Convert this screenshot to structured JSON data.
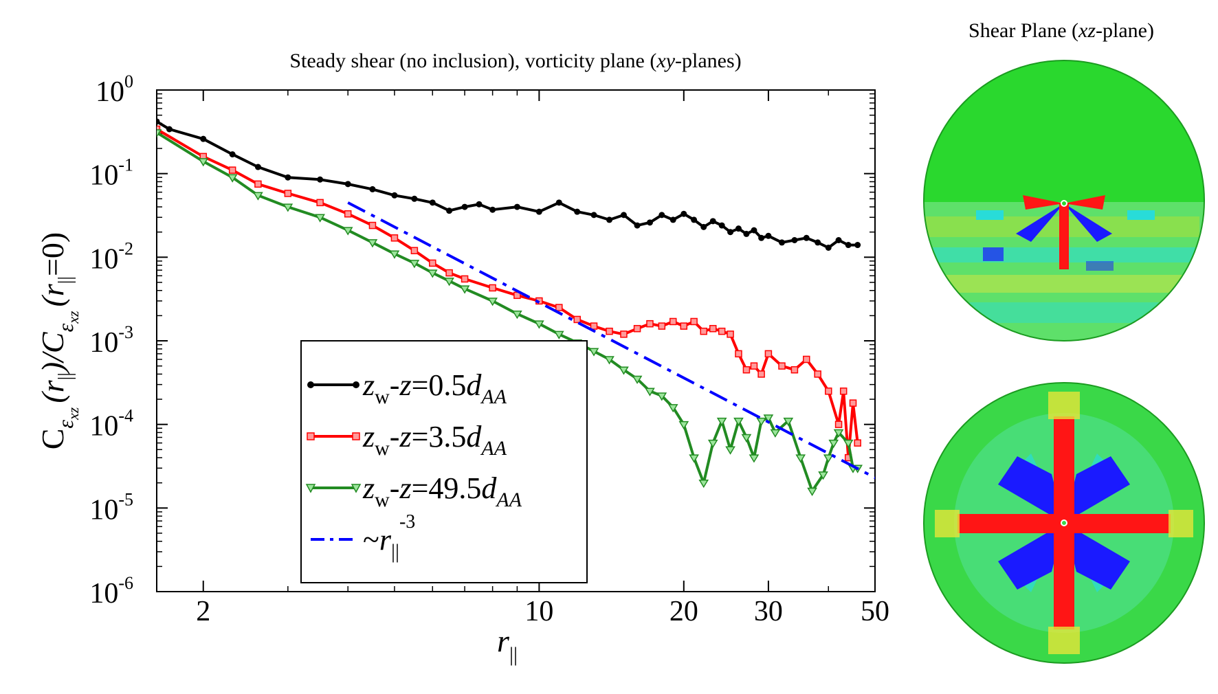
{
  "chart_data": {
    "type": "line",
    "title": "Steady shear (no inclusion), vorticity plane (xy-planes)",
    "title_parts": {
      "pre": "Steady shear (no inclusion), vorticity plane (",
      "it": "xy",
      "post": "-planes)"
    },
    "xscale": "log",
    "yscale": "log",
    "xlim": [
      1.6,
      50
    ],
    "ylim_exp": [
      -6,
      0
    ],
    "xticks": [
      {
        "v": 2,
        "label": "2"
      },
      {
        "v": 10,
        "label": "10"
      },
      {
        "v": 20,
        "label": "20"
      },
      {
        "v": 30,
        "label": "30"
      },
      {
        "v": 50,
        "label": "50"
      }
    ],
    "yticks": [
      {
        "v": 0,
        "base": "10",
        "exp": "0"
      },
      {
        "v": -1,
        "base": "10",
        "exp": "-1"
      },
      {
        "v": -2,
        "base": "10",
        "exp": "-2"
      },
      {
        "v": -3,
        "base": "10",
        "exp": "-3"
      },
      {
        "v": -4,
        "base": "10",
        "exp": "-4"
      },
      {
        "v": -5,
        "base": "10",
        "exp": "-5"
      },
      {
        "v": -6,
        "base": "10",
        "exp": "-6"
      }
    ],
    "xlabel": {
      "main": "r",
      "sub": "||"
    },
    "ylabel": {
      "c": "C",
      "eps": "ε",
      "xz": "xz",
      "r": "(r",
      "sub": "||",
      "close": ")/C",
      "r0": "(r",
      "eq": "=0)"
    },
    "series": [
      {
        "name": "zw-z=0.5dAA",
        "color": "#000000",
        "marker": "circle",
        "legend": {
          "z": "z",
          "w": "w",
          "mid": "-",
          "z2": "z",
          "eq": "=0.5",
          "d": "d",
          "sub": "AA"
        },
        "x": [
          1.6,
          1.7,
          2.0,
          2.3,
          2.6,
          3.0,
          3.5,
          4.0,
          4.5,
          5.0,
          5.5,
          6.0,
          6.5,
          7.0,
          7.5,
          8.0,
          9.0,
          10.0,
          11.0,
          12.0,
          13.0,
          14.0,
          15.0,
          16.0,
          17.0,
          18.0,
          19.0,
          20.0,
          21.0,
          22.0,
          23.0,
          24.0,
          25.0,
          26.0,
          27.0,
          28.0,
          29.0,
          30.0,
          32.0,
          34.0,
          36.0,
          38.0,
          40.0,
          42.0,
          44.0,
          46.0
        ],
        "y": [
          0.42,
          0.34,
          0.26,
          0.17,
          0.12,
          0.09,
          0.085,
          0.075,
          0.065,
          0.055,
          0.05,
          0.045,
          0.036,
          0.04,
          0.043,
          0.037,
          0.04,
          0.035,
          0.045,
          0.035,
          0.032,
          0.028,
          0.032,
          0.024,
          0.026,
          0.032,
          0.028,
          0.033,
          0.028,
          0.023,
          0.027,
          0.024,
          0.02,
          0.022,
          0.019,
          0.021,
          0.017,
          0.018,
          0.015,
          0.016,
          0.017,
          0.015,
          0.013,
          0.016,
          0.014,
          0.014
        ]
      },
      {
        "name": "zw-z=3.5dAA",
        "color": "#ff0000",
        "marker": "square",
        "legend": {
          "z": "z",
          "w": "w",
          "mid": "-",
          "z2": "z",
          "eq": "=3.5",
          "d": "d",
          "sub": "AA"
        },
        "x": [
          1.6,
          2.0,
          2.3,
          2.6,
          3.0,
          3.5,
          4.0,
          4.5,
          5.0,
          5.5,
          6.0,
          6.5,
          7.0,
          8.0,
          9.0,
          10.0,
          11.0,
          12.0,
          13.0,
          14.0,
          15.0,
          16.0,
          17.0,
          18.0,
          19.0,
          20.0,
          21.0,
          22.0,
          23.0,
          24.0,
          25.0,
          26.0,
          27.0,
          28.0,
          29.0,
          30.0,
          32.0,
          34.0,
          36.0,
          38.0,
          40.0,
          42.0,
          43.0,
          44.0,
          45.0,
          46.0
        ],
        "y": [
          0.34,
          0.16,
          0.11,
          0.075,
          0.058,
          0.045,
          0.033,
          0.024,
          0.017,
          0.012,
          0.0085,
          0.0065,
          0.0055,
          0.0043,
          0.0035,
          0.003,
          0.0025,
          0.0018,
          0.0015,
          0.0013,
          0.0012,
          0.0014,
          0.0016,
          0.0015,
          0.0017,
          0.0015,
          0.0017,
          0.0013,
          0.0014,
          0.0013,
          0.0012,
          0.0007,
          0.00045,
          0.0005,
          0.0004,
          0.0007,
          0.0005,
          0.00045,
          0.0006,
          0.0004,
          0.00025,
          0.0001,
          0.00025,
          4e-05,
          0.00018,
          6e-05
        ]
      },
      {
        "name": "zw-z=49.5dAA",
        "color": "#228b22",
        "marker": "triangle-down",
        "legend": {
          "z": "z",
          "w": "w",
          "mid": "-",
          "z2": "z",
          "eq": "=49.5",
          "d": "d",
          "sub": "AA"
        },
        "x": [
          1.6,
          2.0,
          2.3,
          2.6,
          3.0,
          3.5,
          4.0,
          4.5,
          5.0,
          5.5,
          6.0,
          6.5,
          7.0,
          8.0,
          9.0,
          10.0,
          11.0,
          12.0,
          13.0,
          14.0,
          15.0,
          16.0,
          17.0,
          18.0,
          19.0,
          20.0,
          21.0,
          22.0,
          23.0,
          24.0,
          25.0,
          26.0,
          27.0,
          28.0,
          29.0,
          30.0,
          31.0,
          33.0,
          35.0,
          37.0,
          39.0,
          40.0,
          41.0,
          42.0,
          44.0,
          45.0,
          46.0
        ],
        "y": [
          0.31,
          0.14,
          0.09,
          0.055,
          0.04,
          0.03,
          0.021,
          0.015,
          0.011,
          0.0085,
          0.0065,
          0.0052,
          0.0042,
          0.003,
          0.0021,
          0.0016,
          0.0012,
          0.00095,
          0.00075,
          0.0006,
          0.00045,
          0.00035,
          0.00025,
          0.00022,
          0.00016,
          0.0001,
          4e-05,
          2e-05,
          6e-05,
          0.00011,
          5e-05,
          0.00011,
          7e-05,
          4e-05,
          0.00011,
          0.00012,
          8e-05,
          0.00011,
          4e-05,
          1.6e-05,
          2.5e-05,
          4e-05,
          6e-05,
          8e-05,
          6e-05,
          3e-05,
          3e-05
        ]
      },
      {
        "name": "~r||^-3",
        "color": "#0000ff",
        "marker": "none",
        "style": "dashed",
        "legend": {
          "tilde": "~",
          "r": "r",
          "sub": "||",
          "exp": "-3"
        },
        "x": [
          4.0,
          52.0
        ],
        "y": [
          0.045,
          2.05e-05
        ]
      }
    ],
    "legend_position": "lower-center"
  },
  "side_panel": {
    "title_pre": "Shear Plane (",
    "title_it": "xz",
    "title_post": "-plane)",
    "colors": {
      "green": "#22e02a",
      "red": "#ff1515",
      "blue": "#1a1aff",
      "cyan": "#28dcd8",
      "yellow": "#e6e63a"
    }
  }
}
